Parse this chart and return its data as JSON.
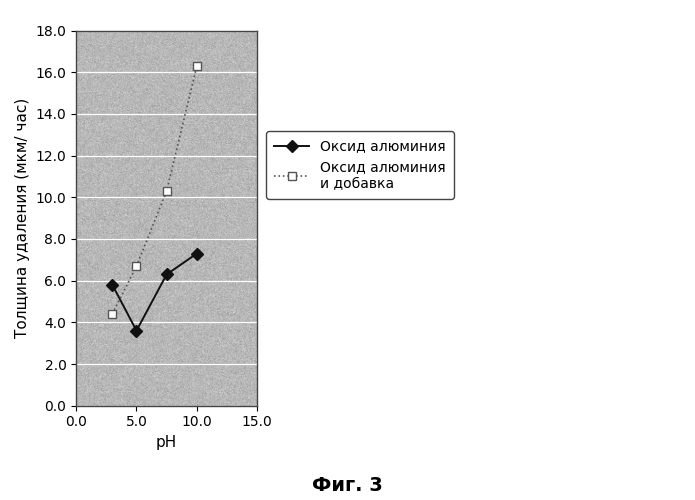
{
  "title": "",
  "xlabel": "pH",
  "ylabel": "Толщина удаления (мкм/ час)",
  "xlim": [
    0.0,
    15.0
  ],
  "ylim": [
    0.0,
    18.0
  ],
  "xticks": [
    0.0,
    5.0,
    10.0,
    15.0
  ],
  "yticks": [
    0.0,
    2.0,
    4.0,
    6.0,
    8.0,
    10.0,
    12.0,
    14.0,
    16.0,
    18.0
  ],
  "series1": {
    "label": "Оксид алюминия",
    "x": [
      3.0,
      5.0,
      7.5,
      10.0
    ],
    "y": [
      5.8,
      3.6,
      6.3,
      7.3
    ],
    "color": "#111111",
    "marker": "D",
    "markersize": 6,
    "linestyle": "-",
    "linewidth": 1.4
  },
  "series2": {
    "label": "Оксид алюминия\nи добавка",
    "x": [
      3.0,
      5.0,
      7.5,
      10.0
    ],
    "y": [
      4.4,
      6.7,
      10.3,
      16.3
    ],
    "color": "#555555",
    "marker": "s",
    "markersize": 6,
    "linestyle": ":",
    "linewidth": 1.2
  },
  "figure_bg": "#ffffff",
  "plot_bg_noise_mean": 0.72,
  "plot_bg_noise_std": 0.06,
  "legend_fontsize": 10,
  "axis_fontsize": 11,
  "tick_fontsize": 10,
  "caption": "Фиг. 3",
  "caption_fontsize": 14
}
